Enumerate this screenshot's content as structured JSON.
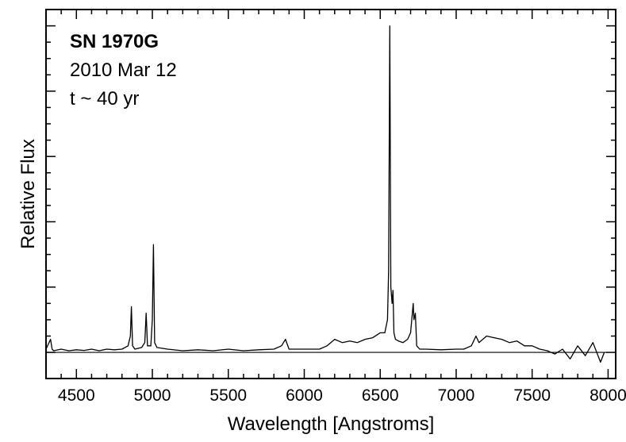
{
  "chart_data": {
    "type": "line",
    "title": "",
    "xlabel": "Wavelength [Angstroms]",
    "ylabel": "Relative Flux",
    "xlim": [
      4300,
      8050
    ],
    "ylim": [
      -0.08,
      1.05
    ],
    "x_ticks": [
      4500,
      5000,
      5500,
      6000,
      6500,
      7000,
      7500,
      8000
    ],
    "y_tick_labels": false,
    "grid": false,
    "baseline": 0,
    "annotations": [
      "SN 1970G",
      "2010 Mar 12",
      "t ~ 40 yr"
    ],
    "series": [
      {
        "x": [
          4300,
          4330,
          4340,
          4350,
          4400,
          4450,
          4500,
          4550,
          4600,
          4650,
          4700,
          4750,
          4800,
          4840,
          4855,
          4862,
          4870,
          4885,
          4930,
          4950,
          4959,
          4968,
          4990,
          5000,
          5007,
          5015,
          5030,
          5100,
          5200,
          5300,
          5400,
          5500,
          5600,
          5700,
          5800,
          5850,
          5876,
          5900,
          6000,
          6100,
          6150,
          6200,
          6250,
          6300,
          6350,
          6400,
          6450,
          6500,
          6530,
          6548,
          6555,
          6563,
          6570,
          6578,
          6584,
          6590,
          6600,
          6620,
          6650,
          6680,
          6700,
          6717,
          6722,
          6731,
          6740,
          6760,
          6800,
          6900,
          7000,
          7050,
          7100,
          7130,
          7150,
          7200,
          7250,
          7300,
          7350,
          7400,
          7450,
          7500,
          7550,
          7600,
          7650,
          7700,
          7750,
          7800,
          7850,
          7900,
          7950,
          7975
        ],
        "y": [
          0.01,
          0.04,
          0.01,
          0.005,
          0.01,
          0.005,
          0.008,
          0.006,
          0.01,
          0.005,
          0.01,
          0.008,
          0.01,
          0.02,
          0.05,
          0.14,
          0.02,
          0.01,
          0.015,
          0.03,
          0.12,
          0.02,
          0.02,
          0.1,
          0.33,
          0.03,
          0.015,
          0.01,
          0.005,
          0.008,
          0.005,
          0.01,
          0.005,
          0.008,
          0.01,
          0.02,
          0.04,
          0.01,
          0.01,
          0.01,
          0.02,
          0.04,
          0.03,
          0.035,
          0.03,
          0.04,
          0.045,
          0.06,
          0.06,
          0.1,
          0.25,
          1.0,
          0.2,
          0.15,
          0.19,
          0.06,
          0.04,
          0.035,
          0.03,
          0.04,
          0.06,
          0.15,
          0.1,
          0.12,
          0.02,
          0.01,
          0.01,
          0.008,
          0.01,
          0.01,
          0.02,
          0.05,
          0.03,
          0.05,
          0.045,
          0.04,
          0.03,
          0.035,
          0.02,
          0.02,
          0.01,
          0.005,
          -0.005,
          0.01,
          -0.02,
          0.02,
          -0.01,
          0.03,
          -0.03,
          0.0
        ]
      }
    ]
  }
}
